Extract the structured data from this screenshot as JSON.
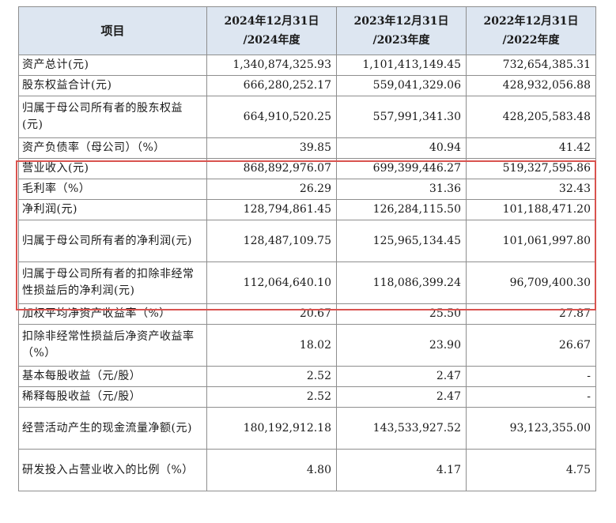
{
  "header": {
    "item": "项目",
    "col1": [
      "2024年12月31日",
      "/2024年度"
    ],
    "col2": [
      "2023年12月31日",
      "/2023年度"
    ],
    "col3": [
      "2022年12月31日",
      "/2022年度"
    ]
  },
  "rows": [
    {
      "label": "资产总计(元)",
      "v1": "1,340,874,325.93",
      "v2": "1,101,413,149.45",
      "v3": "732,654,385.31"
    },
    {
      "label": "股东权益合计(元)",
      "v1": "666,280,252.17",
      "v2": "559,041,329.06",
      "v3": "428,932,056.88"
    },
    {
      "label": "归属于母公司所有者的股东权益(元)",
      "v1": "664,910,520.25",
      "v2": "557,991,341.30",
      "v3": "428,205,583.48"
    },
    {
      "label": "资产负债率（母公司）（%）",
      "v1": "39.85",
      "v2": "40.94",
      "v3": "41.42"
    },
    {
      "label": "营业收入(元)",
      "v1": "868,892,976.07",
      "v2": "699,399,446.27",
      "v3": "519,327,595.86"
    },
    {
      "label": "毛利率（%）",
      "v1": "26.29",
      "v2": "31.36",
      "v3": "32.43"
    },
    {
      "label": "净利润(元)",
      "v1": "128,794,861.45",
      "v2": "126,284,115.50",
      "v3": "101,188,471.20"
    },
    {
      "label": "归属于母公司所有者的净利润(元)",
      "v1": "128,487,109.75",
      "v2": "125,965,134.45",
      "v3": "101,061,997.80"
    },
    {
      "label": "归属于母公司所有者的扣除非经常性损益后的净利润(元)",
      "v1": "112,064,640.10",
      "v2": "118,086,399.24",
      "v3": "96,709,400.30"
    },
    {
      "label": "加权平均净资产收益率（%）",
      "v1": "20.67",
      "v2": "25.50",
      "v3": "27.87"
    },
    {
      "label": "扣除非经常性损益后净资产收益率（%）",
      "v1": "18.02",
      "v2": "23.90",
      "v3": "26.67"
    },
    {
      "label": "基本每股收益（元/股）",
      "v1": "2.52",
      "v2": "2.47",
      "v3": "-"
    },
    {
      "label": "稀释每股收益（元/股）",
      "v1": "2.52",
      "v2": "2.47",
      "v3": "-"
    },
    {
      "label": "经营活动产生的现金流量净额(元)",
      "v1": "180,192,912.18",
      "v2": "143,533,927.52",
      "v3": "93,123,355.00"
    },
    {
      "label": "研发投入占营业收入的比例（%）",
      "v1": "4.80",
      "v2": "4.17",
      "v3": "4.75"
    }
  ],
  "highlight_color": "#d9534f",
  "header_bg": "#dde6f1"
}
